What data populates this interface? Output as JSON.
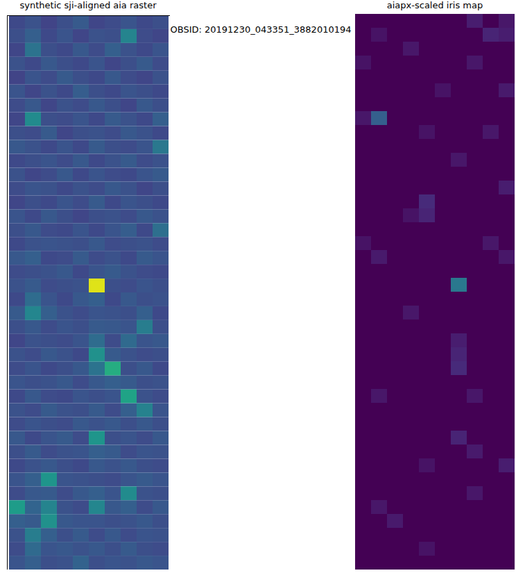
{
  "suptitle": "OBSID: 20191230_043351_3882010194",
  "chart_data": [
    {
      "type": "heatmap",
      "title": "synthetic sji-aligned aia raster",
      "tick_labels": false,
      "zlim": [
        0,
        1
      ],
      "cells": [
        [
          0.22,
          0.25,
          0.2,
          0.24,
          0.28,
          0.21,
          0.23,
          0.26,
          0.22,
          0.24
        ],
        [
          0.24,
          0.3,
          0.22,
          0.26,
          0.21,
          0.25,
          0.24,
          0.45,
          0.23,
          0.21
        ],
        [
          0.21,
          0.38,
          0.24,
          0.22,
          0.27,
          0.23,
          0.3,
          0.25,
          0.22,
          0.26
        ],
        [
          0.25,
          0.22,
          0.27,
          0.24,
          0.22,
          0.26,
          0.21,
          0.24,
          0.28,
          0.23
        ],
        [
          0.2,
          0.26,
          0.23,
          0.28,
          0.24,
          0.22,
          0.27,
          0.23,
          0.21,
          0.25
        ],
        [
          0.26,
          0.21,
          0.25,
          0.22,
          0.29,
          0.24,
          0.22,
          0.26,
          0.24,
          0.22
        ],
        [
          0.23,
          0.27,
          0.21,
          0.25,
          0.23,
          0.27,
          0.24,
          0.21,
          0.27,
          0.24
        ],
        [
          0.21,
          0.48,
          0.24,
          0.23,
          0.26,
          0.22,
          0.28,
          0.25,
          0.22,
          0.3
        ],
        [
          0.24,
          0.23,
          0.28,
          0.21,
          0.24,
          0.25,
          0.23,
          0.27,
          0.25,
          0.22
        ],
        [
          0.27,
          0.25,
          0.22,
          0.26,
          0.22,
          0.28,
          0.24,
          0.23,
          0.26,
          0.4
        ],
        [
          0.22,
          0.24,
          0.26,
          0.23,
          0.27,
          0.22,
          0.25,
          0.28,
          0.23,
          0.25
        ],
        [
          0.25,
          0.21,
          0.23,
          0.27,
          0.22,
          0.26,
          0.23,
          0.22,
          0.26,
          0.28
        ],
        [
          0.23,
          0.26,
          0.25,
          0.22,
          0.25,
          0.23,
          0.27,
          0.25,
          0.21,
          0.24
        ],
        [
          0.21,
          0.24,
          0.22,
          0.26,
          0.23,
          0.28,
          0.22,
          0.26,
          0.24,
          0.22
        ],
        [
          0.26,
          0.22,
          0.27,
          0.24,
          0.21,
          0.24,
          0.25,
          0.23,
          0.27,
          0.25
        ],
        [
          0.24,
          0.27,
          0.23,
          0.22,
          0.26,
          0.22,
          0.26,
          0.29,
          0.22,
          0.36
        ],
        [
          0.22,
          0.25,
          0.26,
          0.25,
          0.24,
          0.27,
          0.23,
          0.24,
          0.25,
          0.23
        ],
        [
          0.27,
          0.3,
          0.22,
          0.23,
          0.28,
          0.23,
          0.25,
          0.22,
          0.28,
          0.26
        ],
        [
          0.23,
          0.24,
          0.25,
          0.27,
          0.22,
          0.26,
          0.28,
          0.25,
          0.23,
          0.22
        ],
        [
          0.25,
          0.28,
          0.23,
          0.24,
          0.25,
          0.95,
          0.24,
          0.23,
          0.26,
          0.24
        ],
        [
          0.22,
          0.35,
          0.26,
          0.22,
          0.27,
          0.3,
          0.22,
          0.27,
          0.24,
          0.25
        ],
        [
          0.28,
          0.46,
          0.3,
          0.25,
          0.23,
          0.26,
          0.25,
          0.24,
          0.3,
          0.22
        ],
        [
          0.24,
          0.27,
          0.23,
          0.26,
          0.24,
          0.28,
          0.27,
          0.26,
          0.42,
          0.24
        ],
        [
          0.21,
          0.25,
          0.24,
          0.23,
          0.26,
          0.35,
          0.23,
          0.34,
          0.26,
          0.27
        ],
        [
          0.25,
          0.23,
          0.27,
          0.25,
          0.22,
          0.5,
          0.28,
          0.25,
          0.23,
          0.24
        ],
        [
          0.23,
          0.26,
          0.22,
          0.24,
          0.27,
          0.38,
          0.62,
          0.24,
          0.27,
          0.22
        ],
        [
          0.26,
          0.24,
          0.25,
          0.27,
          0.23,
          0.27,
          0.3,
          0.28,
          0.24,
          0.25
        ],
        [
          0.22,
          0.27,
          0.23,
          0.22,
          0.26,
          0.24,
          0.26,
          0.58,
          0.25,
          0.23
        ],
        [
          0.25,
          0.23,
          0.28,
          0.25,
          0.24,
          0.28,
          0.23,
          0.3,
          0.44,
          0.26
        ],
        [
          0.23,
          0.26,
          0.24,
          0.23,
          0.27,
          0.25,
          0.27,
          0.24,
          0.27,
          0.24
        ],
        [
          0.27,
          0.22,
          0.26,
          0.28,
          0.23,
          0.52,
          0.24,
          0.26,
          0.23,
          0.27
        ],
        [
          0.24,
          0.28,
          0.23,
          0.25,
          0.26,
          0.3,
          0.28,
          0.23,
          0.26,
          0.25
        ],
        [
          0.22,
          0.25,
          0.27,
          0.24,
          0.22,
          0.27,
          0.25,
          0.27,
          0.24,
          0.23
        ],
        [
          0.26,
          0.3,
          0.52,
          0.26,
          0.25,
          0.24,
          0.23,
          0.26,
          0.28,
          0.26
        ],
        [
          0.23,
          0.27,
          0.28,
          0.23,
          0.27,
          0.3,
          0.26,
          0.48,
          0.25,
          0.24
        ],
        [
          0.55,
          0.32,
          0.45,
          0.25,
          0.23,
          0.46,
          0.27,
          0.3,
          0.23,
          0.27
        ],
        [
          0.3,
          0.28,
          0.5,
          0.27,
          0.26,
          0.26,
          0.24,
          0.25,
          0.27,
          0.24
        ],
        [
          0.25,
          0.42,
          0.3,
          0.24,
          0.28,
          0.23,
          0.27,
          0.23,
          0.26,
          0.25
        ],
        [
          0.23,
          0.34,
          0.26,
          0.27,
          0.25,
          0.27,
          0.24,
          0.28,
          0.24,
          0.23
        ],
        [
          0.26,
          0.3,
          0.24,
          0.25,
          0.31,
          0.24,
          0.26,
          0.25,
          0.27,
          0.26
        ]
      ]
    },
    {
      "type": "heatmap",
      "title": "aiapx-scaled iris map",
      "tick_labels": false,
      "zlim": [
        0,
        1
      ],
      "cells": [
        [
          0,
          0,
          0,
          0,
          0,
          0,
          0,
          0.08,
          0,
          0.06
        ],
        [
          0,
          0.05,
          0,
          0,
          0,
          0,
          0,
          0,
          0.1,
          0.08
        ],
        [
          0,
          0,
          0,
          0.06,
          0,
          0,
          0,
          0,
          0,
          0
        ],
        [
          0.05,
          0,
          0,
          0,
          0,
          0,
          0,
          0.06,
          0,
          0
        ],
        [
          0,
          0,
          0,
          0,
          0,
          0,
          0,
          0,
          0,
          0
        ],
        [
          0,
          0,
          0,
          0,
          0,
          0.05,
          0,
          0,
          0,
          0.07
        ],
        [
          0,
          0,
          0,
          0,
          0,
          0,
          0,
          0,
          0,
          0
        ],
        [
          0.06,
          0.3,
          0,
          0,
          0,
          0,
          0,
          0,
          0,
          0
        ],
        [
          0,
          0,
          0,
          0,
          0.05,
          0,
          0,
          0,
          0.06,
          0
        ],
        [
          0,
          0,
          0,
          0,
          0,
          0,
          0,
          0,
          0,
          0
        ],
        [
          0,
          0,
          0,
          0,
          0,
          0,
          0.06,
          0,
          0,
          0
        ],
        [
          0,
          0,
          0,
          0,
          0,
          0,
          0,
          0,
          0,
          0
        ],
        [
          0,
          0,
          0,
          0,
          0,
          0,
          0,
          0,
          0,
          0.08
        ],
        [
          0,
          0,
          0,
          0,
          0.12,
          0,
          0,
          0,
          0,
          0
        ],
        [
          0,
          0,
          0,
          0.05,
          0.1,
          0,
          0,
          0,
          0,
          0
        ],
        [
          0,
          0,
          0,
          0,
          0,
          0,
          0,
          0,
          0,
          0
        ],
        [
          0.05,
          0,
          0,
          0,
          0,
          0,
          0,
          0,
          0.06,
          0
        ],
        [
          0,
          0.07,
          0,
          0,
          0,
          0,
          0,
          0,
          0,
          0.06
        ],
        [
          0,
          0,
          0,
          0,
          0,
          0,
          0,
          0,
          0,
          0
        ],
        [
          0,
          0,
          0,
          0,
          0,
          0,
          0.4,
          0,
          0,
          0
        ],
        [
          0,
          0,
          0,
          0,
          0,
          0,
          0,
          0,
          0,
          0
        ],
        [
          0,
          0,
          0,
          0.06,
          0,
          0,
          0,
          0,
          0,
          0
        ],
        [
          0,
          0,
          0,
          0,
          0,
          0,
          0,
          0,
          0,
          0
        ],
        [
          0,
          0,
          0,
          0,
          0,
          0,
          0.08,
          0,
          0,
          0
        ],
        [
          0,
          0,
          0,
          0,
          0,
          0,
          0.1,
          0,
          0,
          0
        ],
        [
          0,
          0,
          0,
          0,
          0,
          0,
          0.12,
          0,
          0,
          0
        ],
        [
          0,
          0,
          0,
          0,
          0,
          0,
          0,
          0,
          0,
          0
        ],
        [
          0,
          0.06,
          0,
          0,
          0,
          0,
          0,
          0.06,
          0,
          0
        ],
        [
          0,
          0,
          0,
          0,
          0,
          0,
          0,
          0,
          0,
          0
        ],
        [
          0,
          0,
          0,
          0,
          0,
          0,
          0,
          0,
          0,
          0
        ],
        [
          0,
          0,
          0,
          0,
          0,
          0,
          0.1,
          0,
          0,
          0
        ],
        [
          0,
          0,
          0,
          0,
          0,
          0,
          0,
          0.07,
          0,
          0
        ],
        [
          0,
          0,
          0,
          0,
          0.05,
          0,
          0,
          0,
          0,
          0.08
        ],
        [
          0,
          0,
          0,
          0,
          0,
          0,
          0,
          0,
          0,
          0
        ],
        [
          0,
          0,
          0,
          0,
          0,
          0,
          0,
          0.06,
          0,
          0
        ],
        [
          0,
          0.06,
          0,
          0,
          0,
          0,
          0,
          0,
          0,
          0
        ],
        [
          0,
          0,
          0.07,
          0,
          0,
          0,
          0,
          0,
          0,
          0
        ],
        [
          0,
          0,
          0,
          0,
          0,
          0,
          0,
          0,
          0,
          0
        ],
        [
          0,
          0,
          0,
          0,
          0.05,
          0,
          0,
          0,
          0,
          0
        ],
        [
          0,
          0,
          0,
          0,
          0,
          0,
          0,
          0,
          0,
          0
        ]
      ]
    }
  ]
}
